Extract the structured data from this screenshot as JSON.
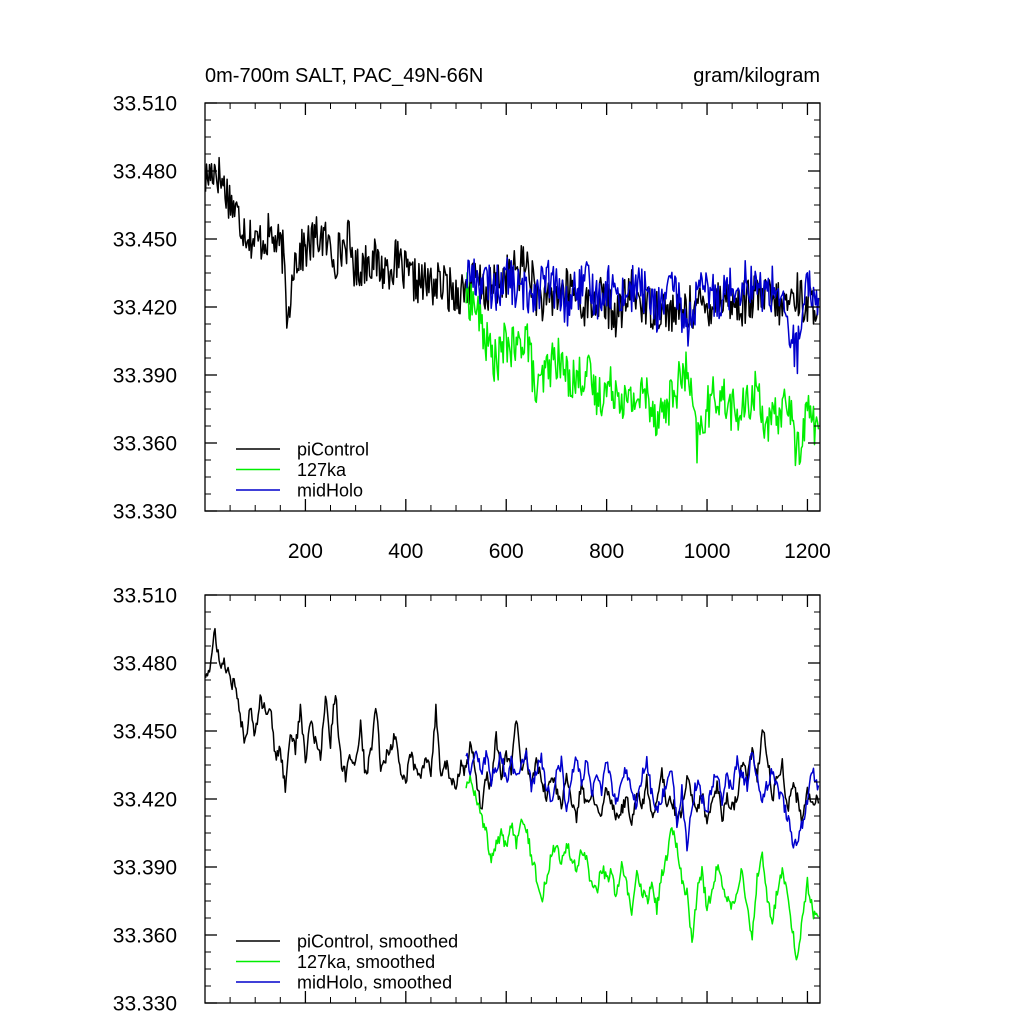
{
  "chart_data": [
    {
      "type": "line",
      "title_left": "0m-700m SALT, PAC_49N-66N",
      "title_right": "gram/kilogram",
      "xlim": [
        0,
        1225
      ],
      "ylim": [
        33.33,
        33.51
      ],
      "x_ticks": [
        200,
        400,
        600,
        800,
        1000,
        1200
      ],
      "x_tick_labels": [
        "200",
        "400",
        "600",
        "800",
        "1000",
        "1200"
      ],
      "y_ticks": [
        33.33,
        33.36,
        33.39,
        33.42,
        33.45,
        33.48,
        33.51
      ],
      "y_tick_labels": [
        "33.330",
        "33.360",
        "33.390",
        "33.420",
        "33.450",
        "33.480",
        "33.510"
      ],
      "legend": [
        "piControl",
        "127ka",
        "midHolo"
      ],
      "legend_position": "bottom-left",
      "series": [
        {
          "name": "piControl",
          "color": "#000000",
          "x": [
            1,
            20,
            45,
            70,
            100,
            130,
            155,
            165,
            175,
            200,
            230,
            260,
            285,
            300,
            330,
            355,
            380,
            410,
            440,
            470,
            500,
            520,
            540,
            560,
            580,
            600,
            620,
            640,
            660,
            680,
            700,
            730,
            760,
            790,
            820,
            850,
            880,
            910,
            940,
            970,
            1000,
            1030,
            1060,
            1090,
            1120,
            1150,
            1180,
            1200,
            1222
          ],
          "values": [
            33.476,
            33.482,
            33.47,
            33.458,
            33.448,
            33.452,
            33.444,
            33.412,
            33.44,
            33.446,
            33.452,
            33.442,
            33.45,
            33.436,
            33.442,
            33.436,
            33.44,
            33.432,
            33.43,
            33.43,
            33.426,
            33.428,
            33.432,
            33.426,
            33.43,
            33.434,
            33.436,
            33.44,
            33.426,
            33.42,
            33.426,
            33.428,
            33.42,
            33.424,
            33.416,
            33.428,
            33.42,
            33.42,
            33.416,
            33.42,
            33.42,
            33.426,
            33.42,
            33.424,
            33.424,
            33.42,
            33.426,
            33.42,
            33.424
          ]
        },
        {
          "name": "127ka",
          "color": "#00ee00",
          "x": [
            520,
            540,
            560,
            580,
            600,
            620,
            640,
            660,
            680,
            700,
            720,
            740,
            760,
            780,
            800,
            820,
            840,
            860,
            880,
            900,
            920,
            940,
            960,
            980,
            1000,
            1020,
            1040,
            1060,
            1080,
            1100,
            1120,
            1140,
            1160,
            1180,
            1200,
            1222
          ],
          "values": [
            33.426,
            33.42,
            33.405,
            33.395,
            33.405,
            33.4,
            33.41,
            33.38,
            33.392,
            33.398,
            33.39,
            33.388,
            33.392,
            33.38,
            33.384,
            33.385,
            33.377,
            33.38,
            33.382,
            33.372,
            33.376,
            33.385,
            33.392,
            33.36,
            33.375,
            33.382,
            33.378,
            33.372,
            33.376,
            33.385,
            33.365,
            33.372,
            33.38,
            33.355,
            33.375,
            33.366
          ]
        },
        {
          "name": "midHolo",
          "color": "#0000cc",
          "x": [
            520,
            540,
            560,
            580,
            600,
            620,
            640,
            660,
            680,
            700,
            720,
            740,
            760,
            780,
            800,
            820,
            840,
            860,
            880,
            900,
            920,
            940,
            960,
            980,
            1000,
            1020,
            1040,
            1060,
            1080,
            1100,
            1120,
            1140,
            1160,
            1180,
            1200,
            1222
          ],
          "values": [
            33.436,
            33.432,
            33.43,
            33.428,
            33.434,
            33.428,
            33.426,
            33.428,
            33.432,
            33.428,
            33.42,
            33.428,
            33.43,
            33.424,
            33.43,
            33.426,
            33.426,
            33.43,
            33.426,
            33.418,
            33.426,
            33.426,
            33.41,
            33.424,
            33.428,
            33.424,
            33.428,
            33.43,
            33.432,
            33.428,
            33.426,
            33.43,
            33.41,
            33.4,
            33.428,
            33.424
          ]
        }
      ]
    },
    {
      "type": "line",
      "xlim": [
        0,
        1225
      ],
      "ylim": [
        33.33,
        33.51
      ],
      "x_ticks": [
        200,
        400,
        600,
        800,
        1000,
        1200
      ],
      "y_ticks": [
        33.33,
        33.36,
        33.39,
        33.42,
        33.45,
        33.48,
        33.51
      ],
      "y_tick_labels": [
        "33.330",
        "33.360",
        "33.390",
        "33.420",
        "33.450",
        "33.480",
        "33.510"
      ],
      "legend": [
        "piControl, smoothed",
        "127ka, smoothed",
        "midHolo, smoothed"
      ],
      "legend_position": "bottom-left",
      "series": [
        {
          "name": "piControl, smoothed",
          "color": "#000000",
          "x": [
            1,
            10,
            20,
            30,
            40,
            50,
            60,
            70,
            80,
            90,
            100,
            110,
            120,
            130,
            140,
            150,
            160,
            170,
            180,
            190,
            200,
            210,
            220,
            230,
            240,
            250,
            260,
            270,
            280,
            290,
            300,
            310,
            320,
            330,
            340,
            350,
            360,
            370,
            380,
            390,
            400,
            410,
            420,
            430,
            440,
            450,
            460,
            470,
            480,
            490,
            500,
            510,
            520,
            530,
            540,
            550,
            560,
            570,
            580,
            590,
            600,
            610,
            620,
            630,
            640,
            650,
            660,
            670,
            680,
            690,
            700,
            710,
            720,
            730,
            740,
            750,
            760,
            770,
            780,
            790,
            800,
            810,
            820,
            830,
            840,
            850,
            860,
            870,
            880,
            890,
            900,
            910,
            920,
            930,
            940,
            950,
            960,
            970,
            980,
            990,
            1000,
            1010,
            1020,
            1030,
            1040,
            1050,
            1060,
            1070,
            1080,
            1090,
            1100,
            1110,
            1120,
            1130,
            1140,
            1150,
            1160,
            1170,
            1180,
            1190,
            1200,
            1210,
            1222
          ],
          "values": [
            33.475,
            33.477,
            33.494,
            33.478,
            33.48,
            33.472,
            33.47,
            33.456,
            33.445,
            33.462,
            33.448,
            33.466,
            33.458,
            33.462,
            33.438,
            33.442,
            33.425,
            33.45,
            33.442,
            33.46,
            33.436,
            33.455,
            33.445,
            33.438,
            33.466,
            33.445,
            33.468,
            33.438,
            33.43,
            33.44,
            33.435,
            33.452,
            33.43,
            33.44,
            33.462,
            33.435,
            33.438,
            33.442,
            33.45,
            33.43,
            33.428,
            33.44,
            33.432,
            33.43,
            33.438,
            33.432,
            33.46,
            33.43,
            33.436,
            33.428,
            33.425,
            33.435,
            33.432,
            33.445,
            33.43,
            33.415,
            33.43,
            33.425,
            33.448,
            33.43,
            33.44,
            33.432,
            33.456,
            33.432,
            33.44,
            33.425,
            33.436,
            33.43,
            33.42,
            33.432,
            33.425,
            33.415,
            33.43,
            33.42,
            33.412,
            33.428,
            33.416,
            33.424,
            33.418,
            33.414,
            33.426,
            33.418,
            33.412,
            33.416,
            33.42,
            33.41,
            33.425,
            33.415,
            33.428,
            33.412,
            33.42,
            33.432,
            33.416,
            33.42,
            33.412,
            33.414,
            33.43,
            33.42,
            33.414,
            33.422,
            33.41,
            33.416,
            33.426,
            33.412,
            33.42,
            33.416,
            33.42,
            33.436,
            33.43,
            33.442,
            33.428,
            33.452,
            33.44,
            33.42,
            33.43,
            33.436,
            33.414,
            33.426,
            33.42,
            33.41,
            33.424,
            33.42,
            33.418
          ]
        },
        {
          "name": "127ka, smoothed",
          "color": "#00ee00",
          "x": [
            520,
            530,
            540,
            550,
            560,
            570,
            580,
            590,
            600,
            610,
            620,
            630,
            640,
            650,
            660,
            670,
            680,
            690,
            700,
            710,
            720,
            730,
            740,
            750,
            760,
            770,
            780,
            790,
            800,
            810,
            820,
            830,
            840,
            850,
            860,
            870,
            880,
            890,
            900,
            910,
            920,
            930,
            940,
            950,
            960,
            970,
            980,
            990,
            1000,
            1010,
            1020,
            1030,
            1040,
            1050,
            1060,
            1070,
            1080,
            1090,
            1100,
            1110,
            1120,
            1130,
            1140,
            1150,
            1160,
            1170,
            1180,
            1190,
            1200,
            1210,
            1222
          ],
          "values": [
            33.426,
            33.43,
            33.42,
            33.412,
            33.405,
            33.392,
            33.4,
            33.404,
            33.398,
            33.41,
            33.4,
            33.414,
            33.408,
            33.395,
            33.386,
            33.375,
            33.385,
            33.396,
            33.402,
            33.392,
            33.4,
            33.394,
            33.388,
            33.398,
            33.392,
            33.382,
            33.378,
            33.39,
            33.384,
            33.388,
            33.376,
            33.392,
            33.382,
            33.368,
            33.386,
            33.38,
            33.375,
            33.384,
            33.372,
            33.386,
            33.394,
            33.408,
            33.398,
            33.385,
            33.378,
            33.356,
            33.378,
            33.388,
            33.372,
            33.38,
            33.39,
            33.382,
            33.376,
            33.372,
            33.38,
            33.388,
            33.372,
            33.36,
            33.386,
            33.395,
            33.375,
            33.366,
            33.38,
            33.388,
            33.378,
            33.362,
            33.348,
            33.368,
            33.384,
            33.37,
            33.368
          ]
        },
        {
          "name": "midHolo, smoothed",
          "color": "#0000cc",
          "x": [
            520,
            530,
            540,
            550,
            560,
            570,
            580,
            590,
            600,
            610,
            620,
            630,
            640,
            650,
            660,
            670,
            680,
            690,
            700,
            710,
            720,
            730,
            740,
            750,
            760,
            770,
            780,
            790,
            800,
            810,
            820,
            830,
            840,
            850,
            860,
            870,
            880,
            890,
            900,
            910,
            920,
            930,
            940,
            950,
            960,
            970,
            980,
            990,
            1000,
            1010,
            1020,
            1030,
            1040,
            1050,
            1060,
            1070,
            1080,
            1090,
            1100,
            1110,
            1120,
            1130,
            1140,
            1150,
            1160,
            1170,
            1180,
            1190,
            1200,
            1210,
            1222
          ],
          "values": [
            33.44,
            33.432,
            33.442,
            33.43,
            33.44,
            33.428,
            33.434,
            33.44,
            33.428,
            33.436,
            33.43,
            33.436,
            33.442,
            33.426,
            33.432,
            33.438,
            33.426,
            33.42,
            33.43,
            33.436,
            33.414,
            33.428,
            33.44,
            33.428,
            33.436,
            33.422,
            33.43,
            33.424,
            33.436,
            33.426,
            33.418,
            33.43,
            33.432,
            33.424,
            33.416,
            33.43,
            33.438,
            33.422,
            33.414,
            33.42,
            33.428,
            33.432,
            33.41,
            33.424,
            33.398,
            33.418,
            33.428,
            33.42,
            33.414,
            33.426,
            33.432,
            33.42,
            33.43,
            33.424,
            33.436,
            33.43,
            33.426,
            33.44,
            33.43,
            33.42,
            33.426,
            33.432,
            33.424,
            33.42,
            33.412,
            33.402,
            33.398,
            33.41,
            33.42,
            33.432,
            33.426
          ]
        }
      ]
    }
  ]
}
